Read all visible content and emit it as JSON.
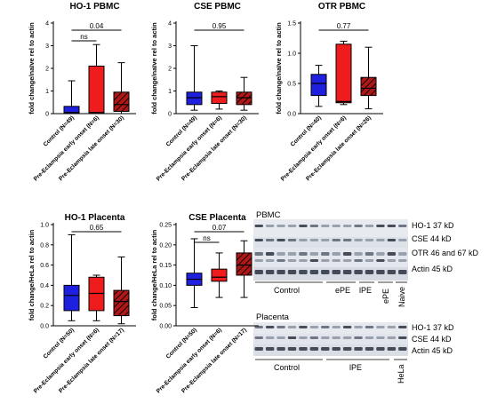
{
  "chart_data": [
    {
      "type": "box",
      "title": "HO-1 PBMC",
      "ylabel": "fold change/naïve rel to actin",
      "ylim": [
        0,
        4
      ],
      "yticks": [
        "0",
        "1",
        "2",
        "3",
        "4"
      ],
      "categories": [
        "Control (N=49)",
        "Pre-Eclampsia early onset (N=6)",
        "Pre-Eclampsia late onset (N=30)"
      ],
      "boxes": [
        {
          "whisker_low": 0.0,
          "q1": 0.0,
          "median": 0.05,
          "q3": 0.32,
          "whisker_high": 1.45
        },
        {
          "whisker_low": 0.0,
          "q1": 0.0,
          "median": 0.05,
          "q3": 2.1,
          "whisker_high": 3.05
        },
        {
          "whisker_low": 0.0,
          "q1": 0.1,
          "median": 0.4,
          "q3": 0.95,
          "whisker_high": 2.25
        }
      ],
      "comparisons": [
        {
          "from": 0,
          "to": 2,
          "label": "0.04"
        },
        {
          "from": 0,
          "to": 1,
          "label": "ns"
        }
      ]
    },
    {
      "type": "box",
      "title": "CSE PBMC",
      "ylabel": "fold change/naïve rel to actin",
      "ylim": [
        0,
        4
      ],
      "yticks": [
        "0",
        "1",
        "2",
        "3",
        "4"
      ],
      "categories": [
        "Control (N=49)",
        "Pre-Eclampsia early onset (N=6)",
        "Pre-Eclampsia late onset (N=30)"
      ],
      "boxes": [
        {
          "whisker_low": 0.15,
          "q1": 0.4,
          "median": 0.7,
          "q3": 0.95,
          "whisker_high": 3.0
        },
        {
          "whisker_low": 0.2,
          "q1": 0.45,
          "median": 0.75,
          "q3": 0.95,
          "whisker_high": 1.0
        },
        {
          "whisker_low": 0.15,
          "q1": 0.4,
          "median": 0.7,
          "q3": 0.95,
          "whisker_high": 1.6
        }
      ],
      "comparisons": [
        {
          "from": 0,
          "to": 2,
          "label": "0.95"
        }
      ]
    },
    {
      "type": "box",
      "title": "OTR PBMC",
      "ylabel": "fold change/naïve rel to actin",
      "ylim": [
        0,
        1.5
      ],
      "yticks": [
        "0.0",
        "0.5",
        "1.0",
        "1.5"
      ],
      "categories": [
        "Control (N=40)",
        "Pre-Eclampsia early onset (N=6)",
        "Pre-Eclampsia late onset (N=26)"
      ],
      "boxes": [
        {
          "whisker_low": 0.12,
          "q1": 0.3,
          "median": 0.5,
          "q3": 0.65,
          "whisker_high": 0.8
        },
        {
          "whisker_low": 0.15,
          "q1": 0.18,
          "median": 0.2,
          "q3": 1.15,
          "whisker_high": 1.2
        },
        {
          "whisker_low": 0.08,
          "q1": 0.3,
          "median": 0.42,
          "q3": 0.6,
          "whisker_high": 1.1
        }
      ],
      "comparisons": [
        {
          "from": 0,
          "to": 2,
          "label": "0.77"
        }
      ]
    },
    {
      "type": "box",
      "title": "HO-1 Placenta",
      "ylabel": "fold change/HeLa rel to actin",
      "ylim": [
        0,
        1.0
      ],
      "yticks": [
        "0.0",
        "0.2",
        "0.4",
        "0.6",
        "0.8",
        "1.0"
      ],
      "categories": [
        "Control (N=50)",
        "Pre-Eclampsia early onset (N=6)",
        "Pre-Eclampsia late onset (N=17)"
      ],
      "boxes": [
        {
          "whisker_low": 0.05,
          "q1": 0.15,
          "median": 0.3,
          "q3": 0.4,
          "whisker_high": 0.9
        },
        {
          "whisker_low": 0.05,
          "q1": 0.15,
          "median": 0.32,
          "q3": 0.48,
          "whisker_high": 0.5
        },
        {
          "whisker_low": 0.02,
          "q1": 0.1,
          "median": 0.24,
          "q3": 0.35,
          "whisker_high": 0.68
        }
      ],
      "comparisons": [
        {
          "from": 0,
          "to": 2,
          "label": "0.65"
        }
      ]
    },
    {
      "type": "box",
      "title": "CSE Placenta",
      "ylabel": "fold change/HeLa rel to actin",
      "ylim": [
        0,
        0.25
      ],
      "yticks": [
        "0.00",
        "0.05",
        "0.10",
        "0.15",
        "0.20",
        "0.25"
      ],
      "categories": [
        "Control (N=50)",
        "Pre-Eclampsia early onset (N=6)",
        "Pre-Eclampsia late onset (N=17)"
      ],
      "boxes": [
        {
          "whisker_low": 0.045,
          "q1": 0.1,
          "median": 0.115,
          "q3": 0.13,
          "whisker_high": 0.215
        },
        {
          "whisker_low": 0.07,
          "q1": 0.11,
          "median": 0.12,
          "q3": 0.14,
          "whisker_high": 0.18
        },
        {
          "whisker_low": 0.07,
          "q1": 0.125,
          "median": 0.15,
          "q3": 0.18,
          "whisker_high": 0.21
        }
      ],
      "comparisons": [
        {
          "from": 0,
          "to": 2,
          "label": "0.07"
        },
        {
          "from": 0,
          "to": 1,
          "label": "ns"
        }
      ]
    }
  ],
  "colors": {
    "control": "#1f1fe0",
    "early": "#ee1c1c",
    "late": "#b01818",
    "hatch": "#000000"
  },
  "blots": {
    "pbmc": {
      "title": "PBMC",
      "band_labels": [
        "HO-1 37 kD",
        "CSE 44 kD",
        "OTR 46 and 67 kD",
        "Actin 45 kD"
      ],
      "group_labels": [
        "Control",
        "ePE",
        "lPE",
        "ePE",
        "Naive"
      ]
    },
    "placenta": {
      "title": "Placenta",
      "band_labels": [
        "HO-1 37 kD",
        "CSE 44 kD",
        "Actin 45 kD"
      ],
      "group_labels": [
        "Control",
        "lPE",
        "HeLa"
      ]
    }
  }
}
